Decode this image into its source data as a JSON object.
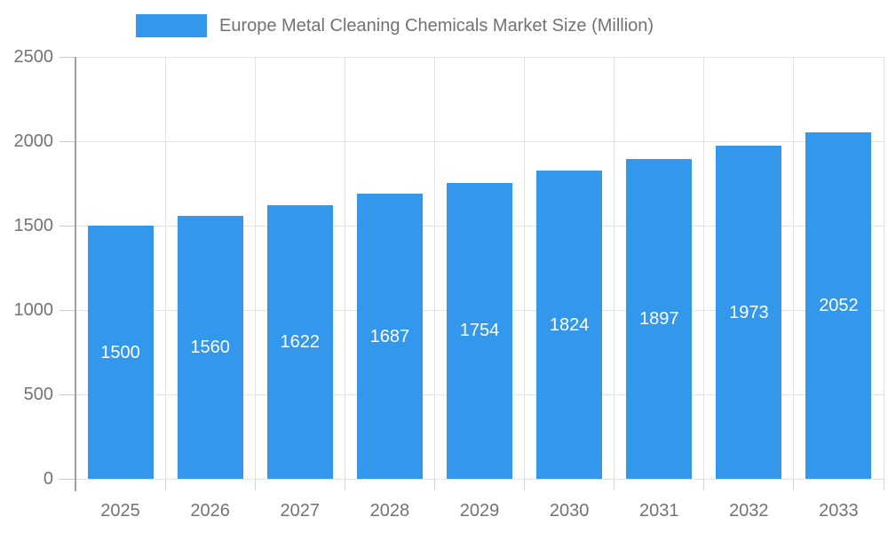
{
  "chart_data": {
    "type": "bar",
    "title": "Europe Metal Cleaning Chemicals Market Size (Million)",
    "legend": {
      "position": "top",
      "entries": [
        "Europe Metal Cleaning Chemicals Market Size (Million)"
      ]
    },
    "categories": [
      "2025",
      "2026",
      "2027",
      "2028",
      "2029",
      "2030",
      "2031",
      "2032",
      "2033"
    ],
    "values": [
      1500,
      1560,
      1622,
      1687,
      1754,
      1824,
      1897,
      1973,
      2052
    ],
    "value_labels": [
      "1500",
      "1560",
      "1622",
      "1687",
      "1754",
      "1824",
      "1897",
      "1973",
      "2052"
    ],
    "xlabel": "",
    "ylabel": "",
    "ylim": [
      0,
      2500
    ],
    "yticks": [
      0,
      500,
      1000,
      1500,
      2000,
      2500
    ],
    "grid": true,
    "colors": {
      "bar": "#3398EC",
      "value_label": "#FFFFFF",
      "axis_text": "#737373",
      "gridline": "#E3E3E3",
      "axis_line": "#9E9E9E"
    }
  }
}
